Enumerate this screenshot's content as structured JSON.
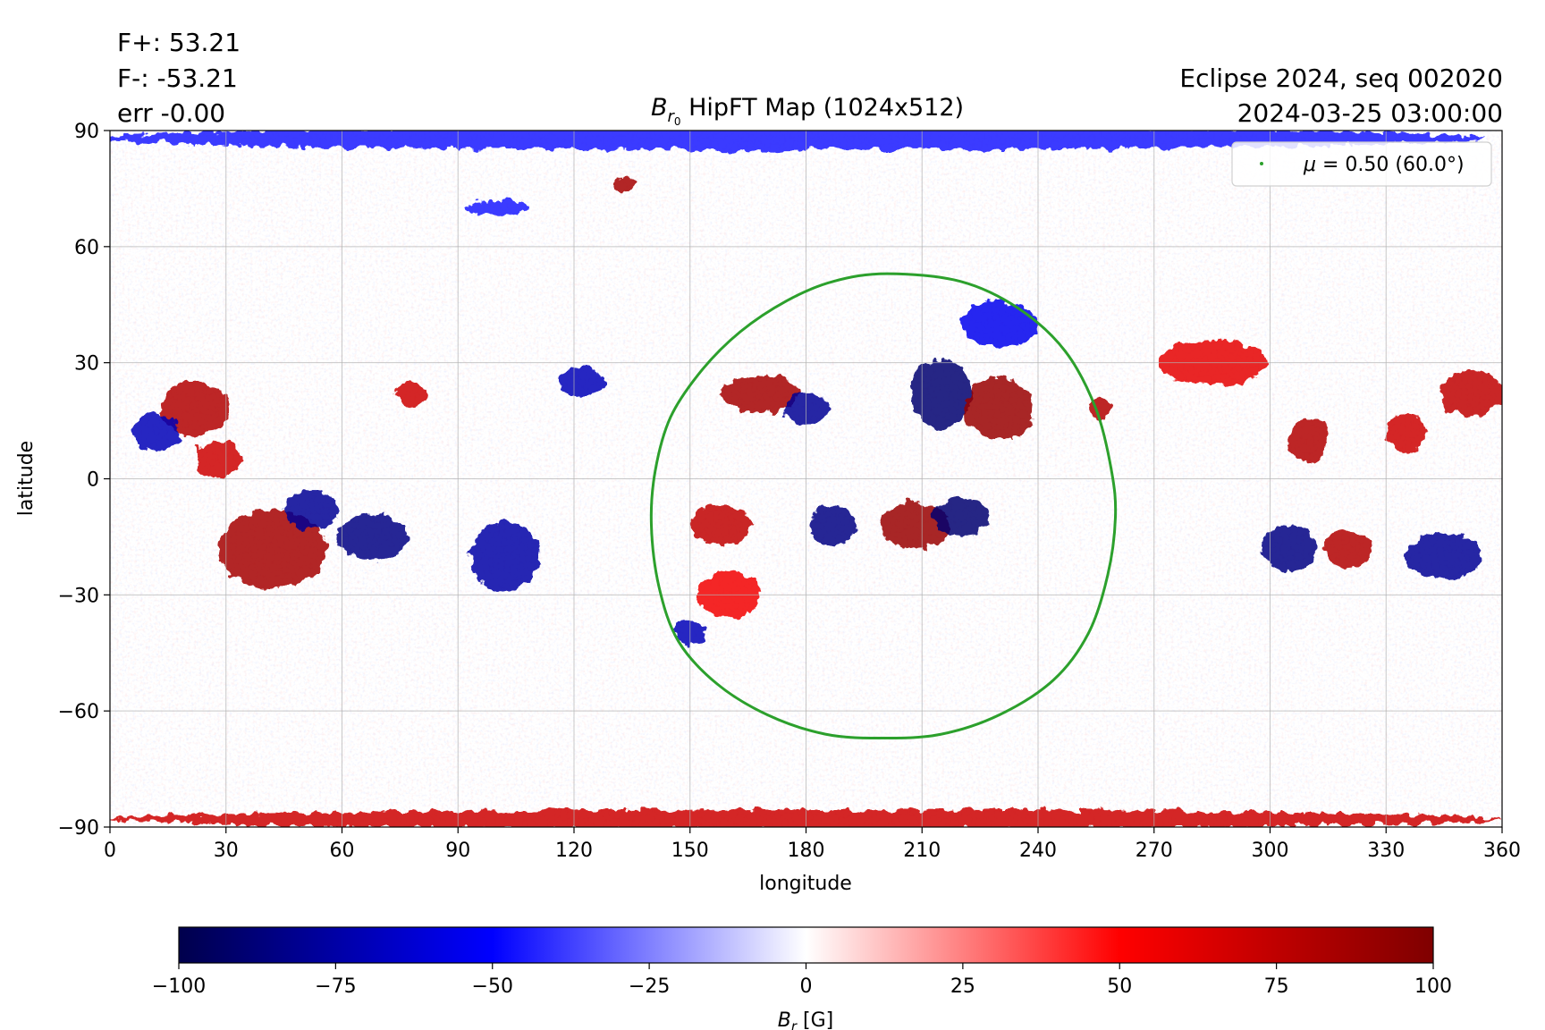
{
  "chart_data": {
    "type": "heatmap",
    "title": "B_r0 HipFT Map (1024x512)",
    "title_parts": {
      "symbol": "B",
      "sub": "r",
      "subsub": "0",
      "rest": " HipFT Map (1024x512)"
    },
    "xlabel": "longitude",
    "ylabel": "latitude",
    "xlim": [
      0,
      360
    ],
    "ylim": [
      -90,
      90
    ],
    "xticks": [
      0,
      30,
      60,
      90,
      120,
      150,
      180,
      210,
      240,
      270,
      300,
      330,
      360
    ],
    "yticks": [
      90,
      60,
      30,
      0,
      -30,
      -60,
      -90
    ],
    "ytick_labels": [
      "90",
      "60",
      "30",
      "0",
      "−30",
      "−60",
      "−90"
    ],
    "grid": true,
    "stats": {
      "fplus": "F+: 53.21",
      "fminus": "F-: -53.21",
      "err": "err -0.00"
    },
    "info": {
      "line1": "Eclipse 2024, seq 002020",
      "line2": "2024-03-25 03:00:00"
    },
    "legend": {
      "placement": "top-right",
      "label_symbol": "μ",
      "label_rest": " = 0.50 (60.0°)",
      "color": "#2ca02c"
    },
    "contour": {
      "name": "μ = 0.50 (60.0°)",
      "color": "#2ca02c",
      "points": [
        [
          201,
          53
        ],
        [
          220,
          51
        ],
        [
          235,
          44
        ],
        [
          247,
          33
        ],
        [
          255,
          18
        ],
        [
          259,
          2
        ],
        [
          260,
          -10
        ],
        [
          258,
          -25
        ],
        [
          253,
          -40
        ],
        [
          244,
          -52
        ],
        [
          230,
          -61
        ],
        [
          215,
          -66
        ],
        [
          200,
          -67
        ],
        [
          185,
          -66
        ],
        [
          170,
          -61
        ],
        [
          157,
          -53
        ],
        [
          147,
          -42
        ],
        [
          142,
          -28
        ],
        [
          140,
          -12
        ],
        [
          141,
          2
        ],
        [
          145,
          16
        ],
        [
          153,
          28
        ],
        [
          163,
          38
        ],
        [
          175,
          46
        ],
        [
          187,
          51
        ]
      ]
    },
    "colorbar": {
      "label_symbol": "B",
      "label_sub": "r",
      "label_rest": " [G]",
      "min": -100,
      "max": 100,
      "ticks": [
        -100,
        -75,
        -50,
        -25,
        0,
        25,
        50,
        75,
        100
      ],
      "tick_labels": [
        "−100",
        "−75",
        "−50",
        "−25",
        "0",
        "25",
        "50",
        "75",
        "100"
      ],
      "colormap": "seismic",
      "stops": [
        [
          "0",
          "#00004c"
        ],
        [
          "0.25",
          "#0000ff"
        ],
        [
          "0.5",
          "#ffffff"
        ],
        [
          "0.75",
          "#ff0000"
        ],
        [
          "1",
          "#7f0000"
        ]
      ]
    },
    "regions": [
      {
        "lon": 42,
        "lat": -18,
        "rx": 14,
        "ry": 10,
        "value": 85
      },
      {
        "lon": 68,
        "lat": -15,
        "rx": 9,
        "ry": 6,
        "value": -85
      },
      {
        "lon": 52,
        "lat": -8,
        "rx": 7,
        "ry": 5,
        "value": -80
      },
      {
        "lon": 22,
        "lat": 18,
        "rx": 9,
        "ry": 7,
        "value": 80
      },
      {
        "lon": 12,
        "lat": 12,
        "rx": 6,
        "ry": 5,
        "value": -70
      },
      {
        "lon": 28,
        "lat": 5,
        "rx": 6,
        "ry": 5,
        "value": 70
      },
      {
        "lon": 102,
        "lat": -20,
        "rx": 9,
        "ry": 9,
        "value": -75
      },
      {
        "lon": 78,
        "lat": 22,
        "rx": 4,
        "ry": 3,
        "value": 70
      },
      {
        "lon": 122,
        "lat": 25,
        "rx": 6,
        "ry": 4,
        "value": -70
      },
      {
        "lon": 133,
        "lat": 76,
        "rx": 3,
        "ry": 2,
        "value": 85
      },
      {
        "lon": 168,
        "lat": 22,
        "rx": 10,
        "ry": 5,
        "value": 85
      },
      {
        "lon": 180,
        "lat": 18,
        "rx": 6,
        "ry": 4,
        "value": -80
      },
      {
        "lon": 215,
        "lat": 22,
        "rx": 8,
        "ry": 9,
        "value": -90
      },
      {
        "lon": 230,
        "lat": 18,
        "rx": 9,
        "ry": 8,
        "value": 90
      },
      {
        "lon": 256,
        "lat": 18,
        "rx": 3,
        "ry": 3,
        "value": 80
      },
      {
        "lon": 208,
        "lat": -12,
        "rx": 9,
        "ry": 6,
        "value": 90
      },
      {
        "lon": 220,
        "lat": -10,
        "rx": 7,
        "ry": 5,
        "value": -90
      },
      {
        "lon": 187,
        "lat": -12,
        "rx": 6,
        "ry": 5,
        "value": -85
      },
      {
        "lon": 158,
        "lat": -12,
        "rx": 8,
        "ry": 5,
        "value": 75
      },
      {
        "lon": 160,
        "lat": -30,
        "rx": 8,
        "ry": 6,
        "value": 55
      },
      {
        "lon": 150,
        "lat": -40,
        "rx": 4,
        "ry": 3,
        "value": -70
      },
      {
        "lon": 285,
        "lat": 30,
        "rx": 14,
        "ry": 6,
        "value": 60
      },
      {
        "lon": 310,
        "lat": 10,
        "rx": 5,
        "ry": 6,
        "value": 80
      },
      {
        "lon": 305,
        "lat": -18,
        "rx": 7,
        "ry": 6,
        "value": -85
      },
      {
        "lon": 320,
        "lat": -18,
        "rx": 6,
        "ry": 5,
        "value": 80
      },
      {
        "lon": 345,
        "lat": -20,
        "rx": 10,
        "ry": 6,
        "value": -80
      },
      {
        "lon": 352,
        "lat": 22,
        "rx": 8,
        "ry": 6,
        "value": 75
      },
      {
        "lon": 335,
        "lat": 12,
        "rx": 5,
        "ry": 5,
        "value": 70
      },
      {
        "lon": 230,
        "lat": 40,
        "rx": 10,
        "ry": 6,
        "value": -55
      },
      {
        "lon": 100,
        "lat": 70,
        "rx": 8,
        "ry": 2,
        "value": -45
      },
      {
        "lon": 175,
        "lat": 88,
        "rx": 180,
        "ry": 3,
        "value": -45
      },
      {
        "lon": 180,
        "lat": -88,
        "rx": 180,
        "ry": 2.5,
        "value": 70
      }
    ]
  }
}
